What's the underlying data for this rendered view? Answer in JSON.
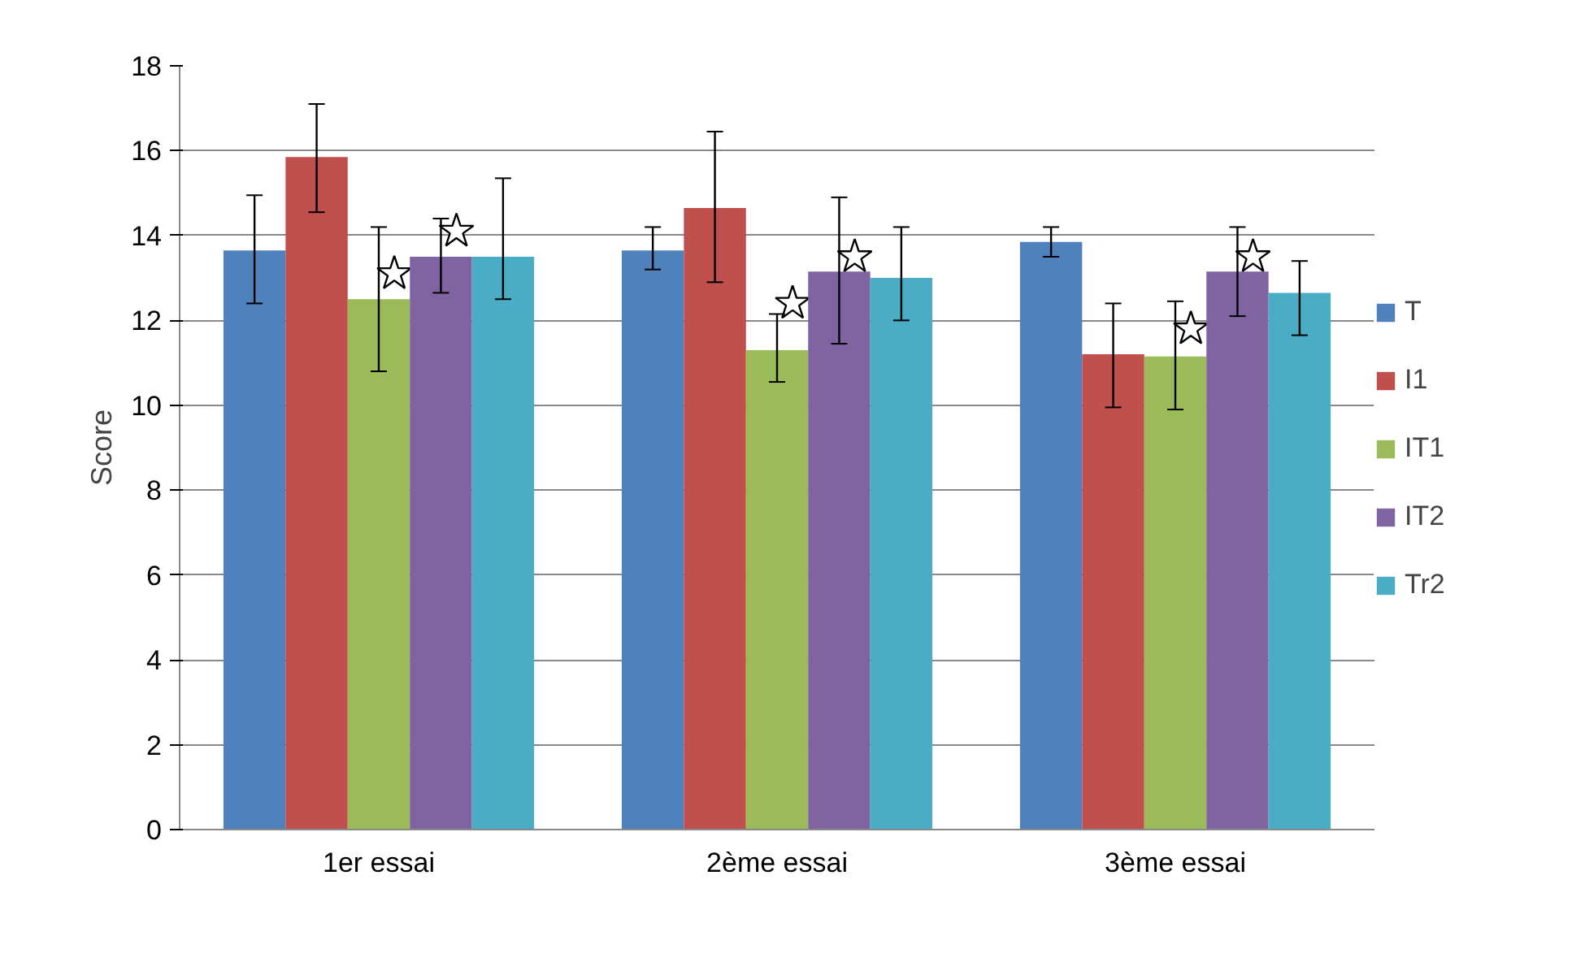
{
  "chart_data": {
    "type": "bar",
    "ylabel": "Score",
    "categories": [
      "1er essai",
      "2ème essai",
      "3ème essai"
    ],
    "ylim": [
      0,
      18
    ],
    "yticks": [
      0,
      2,
      4,
      6,
      8,
      10,
      12,
      14,
      16,
      18
    ],
    "grid": "y",
    "legend": "right",
    "series": [
      {
        "name": "T",
        "color": "#4f81bd",
        "values": [
          13.65,
          13.65,
          13.85
        ],
        "errors": [
          [
            12.4,
            14.95
          ],
          [
            13.2,
            14.2
          ],
          [
            13.5,
            14.2
          ]
        ]
      },
      {
        "name": "I1",
        "color": "#c0504d",
        "values": [
          15.85,
          14.65,
          11.2
        ],
        "errors": [
          [
            14.55,
            17.1
          ],
          [
            12.9,
            16.45
          ],
          [
            9.95,
            12.4
          ]
        ]
      },
      {
        "name": "IT1",
        "color": "#9bbb59",
        "values": [
          12.5,
          11.3,
          11.15
        ],
        "errors": [
          [
            10.8,
            14.2
          ],
          [
            10.55,
            12.15
          ],
          [
            9.9,
            12.45
          ]
        ]
      },
      {
        "type": "scatter",
        "marker": "star",
        "color": "#ffffff",
        "values": [
          13.1,
          12.4,
          11.8
        ]
      },
      {
        "name": "IT2",
        "color": "#8064a2",
        "values": [
          13.5,
          13.15,
          13.15
        ],
        "errors": [
          [
            12.65,
            14.4
          ],
          [
            11.45,
            14.9
          ],
          [
            12.1,
            14.2
          ]
        ]
      },
      {
        "type": "scatter",
        "marker": "star",
        "color": "#ffffff",
        "values": [
          14.1,
          13.5,
          13.5
        ]
      },
      {
        "name": "Tr2",
        "color": "#4bacc6",
        "values": [
          13.5,
          13.0,
          12.65
        ],
        "errors": [
          [
            12.5,
            15.35
          ],
          [
            12.0,
            14.2
          ],
          [
            11.65,
            13.4
          ]
        ]
      }
    ]
  }
}
